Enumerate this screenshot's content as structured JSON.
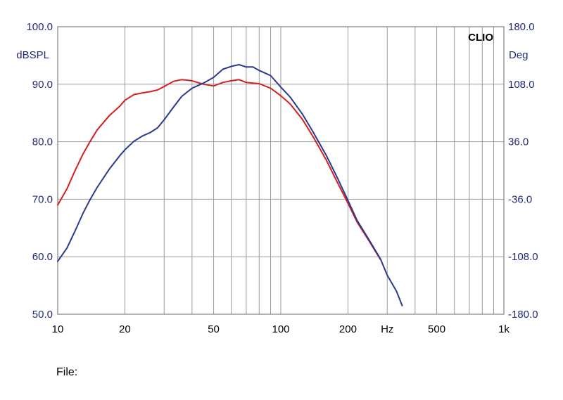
{
  "brand": "CLIO",
  "file_label": "File:",
  "colors": {
    "left_axis_text": "#1f2a78",
    "grid": "#9a9a9a",
    "frame": "#808080",
    "background": "#ffffff"
  },
  "chart_data": {
    "type": "line",
    "title": "",
    "xlabel": "Hz",
    "xscale": "log",
    "xlim": [
      10,
      1000
    ],
    "x_tick_labels": [
      "10",
      "20",
      "50",
      "100",
      "200",
      "Hz",
      "500",
      "1k"
    ],
    "ylabel_left": "dBSPL",
    "ylim_left": [
      50,
      100
    ],
    "y_left_tick_labels": [
      "100.0",
      "90.0",
      "80.0",
      "70.0",
      "60.0",
      "50.0"
    ],
    "ylabel_right": "Deg",
    "ylim_right": [
      -180,
      180
    ],
    "y_right_tick_labels": [
      "180.0",
      "108.0",
      "36.0",
      "-36.0",
      "-108.0",
      "-180.0"
    ],
    "grid": true,
    "legend": "none",
    "series": [
      {
        "color": "#d42020",
        "x": [
          10,
          11,
          12,
          13,
          14,
          15,
          17,
          19,
          20,
          22,
          24,
          26,
          28,
          30,
          33,
          36,
          40,
          45,
          50,
          55,
          60,
          65,
          70,
          75,
          80,
          90,
          100,
          110,
          125,
          140,
          160,
          180,
          200,
          220,
          250,
          280
        ],
        "y": [
          69.0,
          71.8,
          75.1,
          77.9,
          80.1,
          82.0,
          84.5,
          86.2,
          87.2,
          88.2,
          88.5,
          88.7,
          89.0,
          89.6,
          90.5,
          90.8,
          90.6,
          90.0,
          89.7,
          90.3,
          90.6,
          90.8,
          90.3,
          90.2,
          90.1,
          89.3,
          88.0,
          86.6,
          83.9,
          80.8,
          76.8,
          72.8,
          69.3,
          66.0,
          62.6,
          59.5
        ]
      },
      {
        "color": "#2a3a8e",
        "x": [
          10,
          11,
          12,
          13,
          14,
          15,
          17,
          19,
          20,
          22,
          24,
          26,
          28,
          30,
          33,
          36,
          40,
          45,
          50,
          55,
          60,
          65,
          70,
          75,
          80,
          90,
          100,
          110,
          125,
          140,
          160,
          180,
          200,
          220,
          250,
          280,
          300,
          330,
          350
        ],
        "y": [
          59.2,
          61.5,
          64.6,
          67.6,
          70.0,
          72.0,
          75.2,
          77.6,
          78.6,
          80.1,
          81.0,
          81.6,
          82.4,
          83.8,
          86.0,
          87.9,
          89.3,
          90.2,
          91.2,
          92.6,
          93.1,
          93.4,
          93.0,
          93.0,
          92.4,
          91.5,
          89.5,
          87.8,
          84.8,
          81.6,
          77.6,
          73.6,
          69.8,
          66.3,
          62.8,
          59.6,
          56.8,
          54.0,
          51.5
        ]
      }
    ]
  }
}
